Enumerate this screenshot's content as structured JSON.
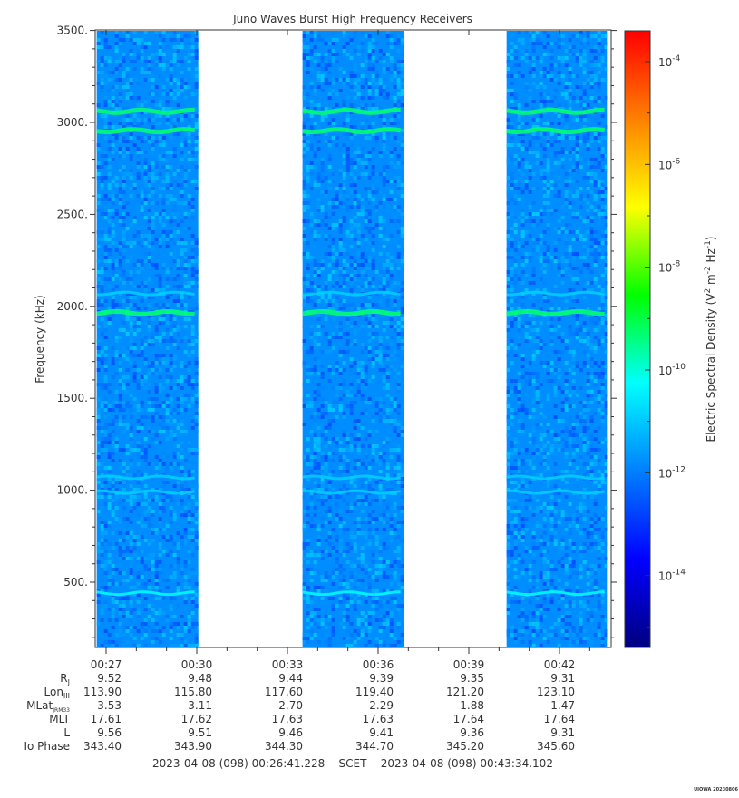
{
  "chart_data": {
    "type": "heatmap",
    "title": "Juno Waves Burst High Frequency Receivers",
    "ylabel": "Frequency (kHz)",
    "ylim": [
      140,
      3500
    ],
    "y_ticks": [
      {
        "value": 500,
        "label": "500."
      },
      {
        "value": 1000,
        "label": "1000."
      },
      {
        "value": 1500,
        "label": "1500."
      },
      {
        "value": 2000,
        "label": "2000."
      },
      {
        "value": 2500,
        "label": "2500."
      },
      {
        "value": 3000,
        "label": "3000."
      },
      {
        "value": 3500,
        "label": "3500."
      }
    ],
    "x_time_range": [
      "00:26:41",
      "00:43:34"
    ],
    "x_ticks": [
      "00:27",
      "00:30",
      "00:33",
      "00:36",
      "00:39",
      "00:42"
    ],
    "x_tick_minutes": [
      27,
      30,
      33,
      36,
      39,
      42
    ],
    "data_segments_minutes": [
      [
        26.69,
        30.05
      ],
      [
        33.5,
        36.85
      ],
      [
        40.25,
        43.57
      ]
    ],
    "emission_bands_khz": [
      {
        "center": 3060,
        "strength": "strong"
      },
      {
        "center": 2955,
        "strength": "strong"
      },
      {
        "center": 2070,
        "strength": "weak"
      },
      {
        "center": 1965,
        "strength": "strong"
      },
      {
        "center": 1070,
        "strength": "weak"
      },
      {
        "center": 990,
        "strength": "weak"
      },
      {
        "center": 440,
        "strength": "medium"
      }
    ],
    "background_level_log10": -11.8,
    "colorbar": {
      "label_prefix": "Electric Spectral Density (V",
      "label_sup1": "2",
      "label_mid1": " m",
      "label_sup2": "-2",
      "label_mid2": " Hz",
      "label_sup3": "-1",
      "label_suffix": ")",
      "range_log10": [
        -15.4,
        -3.4
      ],
      "ticks": [
        {
          "exp": -4,
          "base": "10",
          "sup": "-4"
        },
        {
          "exp": -6,
          "base": "10",
          "sup": "-6"
        },
        {
          "exp": -8,
          "base": "10",
          "sup": "-8"
        },
        {
          "exp": -10,
          "base": "10",
          "sup": "-10"
        },
        {
          "exp": -12,
          "base": "10",
          "sup": "-12"
        },
        {
          "exp": -14,
          "base": "10",
          "sup": "-14"
        }
      ],
      "colors": [
        "#000080",
        "#0000ff",
        "#0080ff",
        "#00ffff",
        "#00ff00",
        "#ffff00",
        "#ff8000",
        "#ff0000"
      ]
    },
    "ephemeris": [
      {
        "name": "R",
        "sub": "J",
        "values": [
          "9.52",
          "9.48",
          "9.44",
          "9.39",
          "9.35",
          "9.31"
        ]
      },
      {
        "name": "Lon",
        "sub": "III",
        "values": [
          "113.90",
          "115.80",
          "117.60",
          "119.40",
          "121.20",
          "123.10"
        ]
      },
      {
        "name": "MLat",
        "sub": "JRM33",
        "values": [
          "-3.53",
          "-3.11",
          "-2.70",
          "-2.29",
          "-1.88",
          "-1.47"
        ]
      },
      {
        "name": "MLT",
        "sub": "",
        "values": [
          "17.61",
          "17.62",
          "17.63",
          "17.63",
          "17.64",
          "17.64"
        ]
      },
      {
        "name": "L",
        "sub": "",
        "values": [
          "9.56",
          "9.51",
          "9.46",
          "9.41",
          "9.36",
          "9.31"
        ]
      },
      {
        "name": "Io Phase",
        "sub": "",
        "values": [
          "343.40",
          "343.90",
          "344.30",
          "344.70",
          "345.20",
          "345.60"
        ]
      }
    ],
    "scet_line": "2023-04-08 (098) 00:26:41.228    SCET    2023-04-08 (098) 00:43:34.102",
    "footer": "UIOWA 20230806"
  }
}
